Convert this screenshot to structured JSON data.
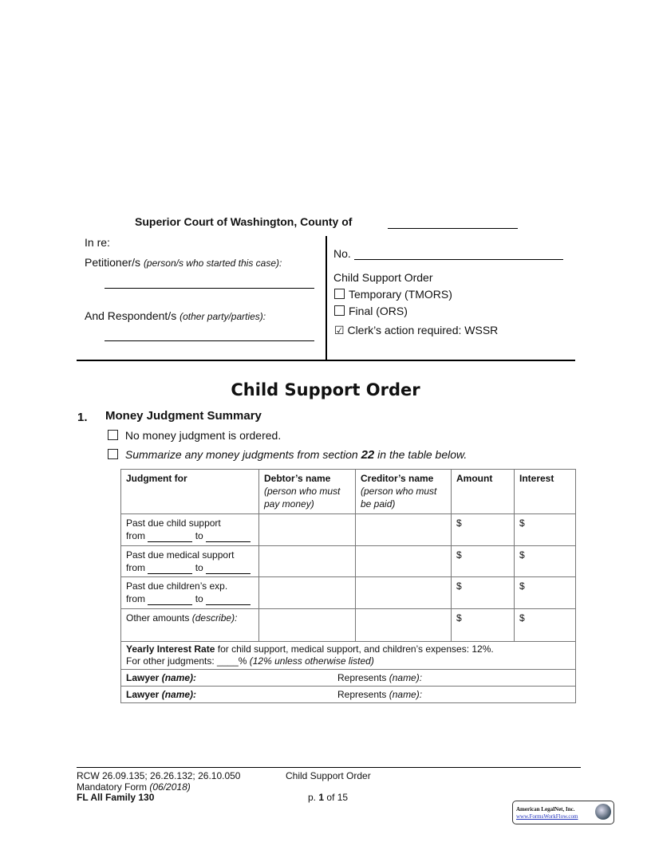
{
  "caption": {
    "court": "Superior Court of Washington, County of",
    "in_re": "In re:",
    "petitioner_label": "Petitioner/s",
    "petitioner_hint": "(person/s who started this case):",
    "respondent_label": "And Respondent/s",
    "respondent_hint": "(other party/parties):",
    "no_label": "No.",
    "order_type_heading": "Child Support Order",
    "options": [
      {
        "label": "Temporary (TMORS)",
        "checked": false
      },
      {
        "label": "Final (ORS)",
        "checked": false
      }
    ],
    "clerk_check": "☑",
    "clerk_action": "Clerk’s action required: WSSR"
  },
  "title": "Child Support Order",
  "section1": {
    "number": "1.",
    "heading": "Money Judgment Summary",
    "option_none": "No money judgment is ordered.",
    "option_summarize_pre": "Summarize any money judgments from section",
    "option_summarize_ref": "22",
    "option_summarize_post": "in the table below."
  },
  "table": {
    "headers": [
      {
        "title": "Judgment for",
        "hint": ""
      },
      {
        "title": "Debtor’s name",
        "hint": "(person who must pay money)"
      },
      {
        "title": "Creditor’s name",
        "hint": "(person who must be paid)"
      },
      {
        "title": "Amount",
        "hint": ""
      },
      {
        "title": "Interest",
        "hint": ""
      }
    ],
    "rows": [
      {
        "label": "Past due child support",
        "from": "from",
        "to": "to",
        "amount": "$",
        "interest": "$"
      },
      {
        "label": "Past due medical support",
        "from": "from",
        "to": "to",
        "amount": "$",
        "interest": "$"
      },
      {
        "label": "Past due children’s exp.",
        "from": "from",
        "to": "to",
        "amount": "$",
        "interest": "$"
      }
    ],
    "other_label": "Other amounts",
    "other_hint": "(describe):",
    "other_amount": "$",
    "other_interest": "$",
    "rate_bold": "Yearly Interest Rate",
    "rate_text": "for child support, medical support, and children’s expenses: 12%.",
    "other_rate_pre": "For other judgments: ____%",
    "other_rate_hint": "(12% unless otherwise listed)",
    "lawyer_label": "Lawyer",
    "lawyer_hint": "(name):",
    "represents_label": "Represents",
    "represents_hint": "(name):"
  },
  "footer": {
    "rcw": "RCW 26.09.135; 26.26.132; 26.10.050",
    "mandatory": "Mandatory Form",
    "mandatory_date": "(06/2018)",
    "form_id": "FL All Family 130",
    "doc_title": "Child Support Order",
    "page_pre": "p.",
    "page_num": "1",
    "page_of": "of 15",
    "logo_name": "American LegalNet, Inc.",
    "logo_url": "www.FormsWorkFlow.com"
  }
}
